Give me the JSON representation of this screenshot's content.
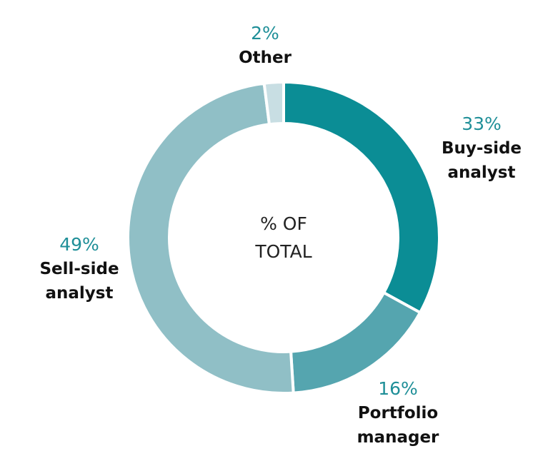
{
  "chart_data": {
    "type": "pie",
    "center_label": [
      "% OF",
      "TOTAL"
    ],
    "slices": [
      {
        "label": [
          "Buy-side",
          "analyst"
        ],
        "value": 33,
        "value_label": "33%",
        "color": "#0b8d95"
      },
      {
        "label": [
          "Portfolio",
          "manager"
        ],
        "value": 16,
        "value_label": "16%",
        "color": "#55a5af"
      },
      {
        "label": [
          "Sell-side",
          "analyst"
        ],
        "value": 49,
        "value_label": "49%",
        "color": "#90bfc6"
      },
      {
        "label": [
          "Other"
        ],
        "value": 2,
        "value_label": "2%",
        "color": "#c8dee3"
      }
    ],
    "percent_color": "#1f8f98"
  }
}
